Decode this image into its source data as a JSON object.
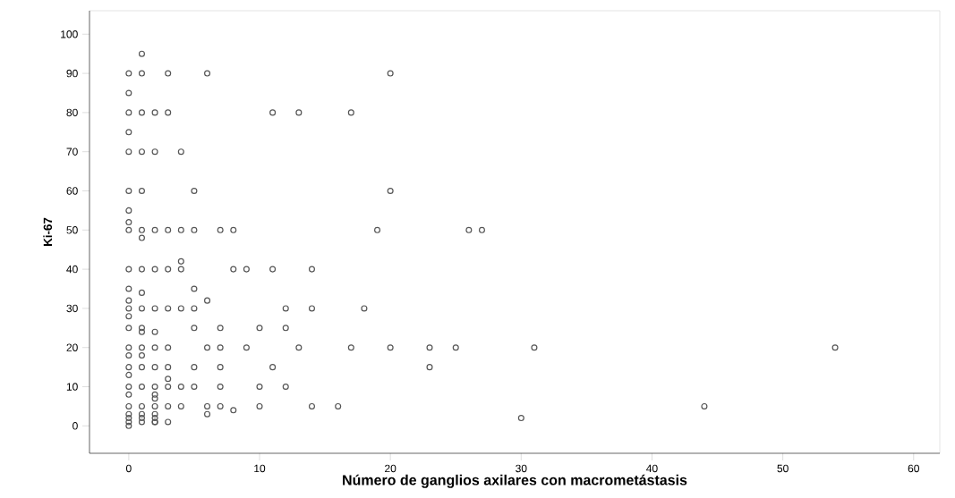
{
  "chart_data": {
    "type": "scatter",
    "xlabel": "Número de ganglios axilares con macrometástasis",
    "ylabel": "Ki-67",
    "xlim": [
      -3,
      62
    ],
    "ylim": [
      -7,
      106
    ],
    "xticks": [
      0,
      10,
      20,
      30,
      40,
      50,
      60
    ],
    "yticks": [
      0,
      10,
      20,
      30,
      40,
      50,
      60,
      70,
      80,
      90,
      100
    ],
    "grid": false,
    "marker": "circle",
    "series": [
      {
        "color": "#555555",
        "x": [
          1,
          0,
          1,
          3,
          6,
          20,
          0,
          0,
          1,
          2,
          3,
          11,
          13,
          17,
          0,
          0,
          1,
          2,
          4,
          0,
          1,
          5,
          20,
          0,
          0,
          0,
          1,
          2,
          3,
          4,
          5,
          7,
          8,
          19,
          26,
          27,
          1,
          4,
          0,
          1,
          2,
          3,
          4,
          8,
          9,
          11,
          14,
          0,
          5,
          1,
          0,
          6,
          0,
          1,
          2,
          3,
          4,
          5,
          12,
          14,
          18,
          0,
          0,
          1,
          5,
          7,
          10,
          12,
          1,
          2,
          0,
          1,
          2,
          3,
          6,
          7,
          9,
          13,
          17,
          20,
          23,
          25,
          31,
          54,
          0,
          1,
          0,
          1,
          2,
          3,
          5,
          7,
          11,
          23,
          0,
          3,
          0,
          1,
          2,
          3,
          4,
          5,
          7,
          10,
          12,
          0,
          2,
          2,
          0,
          1,
          2,
          3,
          4,
          6,
          7,
          8,
          10,
          14,
          16,
          44,
          6,
          30,
          0,
          1,
          2,
          0,
          1,
          2,
          0,
          2,
          0,
          1,
          2,
          3
        ],
        "values": [
          95,
          90,
          90,
          90,
          90,
          90,
          85,
          80,
          80,
          80,
          80,
          80,
          80,
          80,
          75,
          70,
          70,
          70,
          70,
          60,
          60,
          60,
          60,
          55,
          52,
          50,
          50,
          50,
          50,
          50,
          50,
          50,
          50,
          50,
          50,
          50,
          48,
          42,
          40,
          40,
          40,
          40,
          40,
          40,
          40,
          40,
          40,
          35,
          35,
          34,
          32,
          32,
          30,
          30,
          30,
          30,
          30,
          30,
          30,
          30,
          30,
          28,
          25,
          25,
          25,
          25,
          25,
          25,
          24,
          24,
          20,
          20,
          20,
          20,
          20,
          20,
          20,
          20,
          20,
          20,
          20,
          20,
          20,
          20,
          18,
          18,
          15,
          15,
          15,
          15,
          15,
          15,
          15,
          15,
          13,
          12,
          10,
          10,
          10,
          10,
          10,
          10,
          10,
          10,
          10,
          8,
          8,
          7,
          5,
          5,
          5,
          5,
          5,
          5,
          5,
          4,
          5,
          5,
          5,
          5,
          3,
          2,
          3,
          3,
          3,
          2,
          2,
          2,
          1,
          1,
          0,
          1,
          1,
          1
        ]
      }
    ]
  }
}
